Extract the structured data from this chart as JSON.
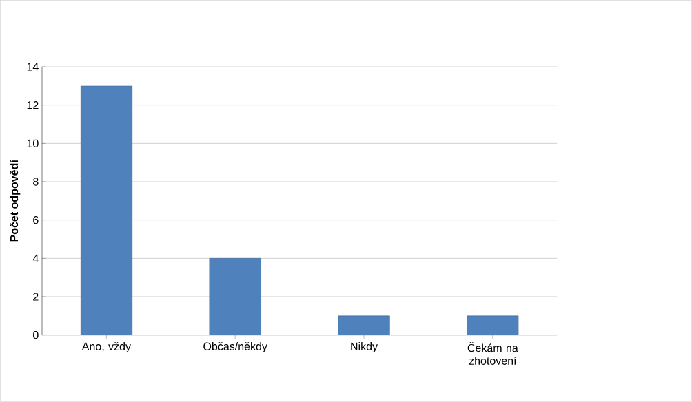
{
  "chart_data": {
    "type": "bar",
    "ylabel": "Počet odpovědí",
    "categories": [
      "Ano, vždy",
      "Občas/někdy",
      "Nikdy",
      "Čekám na zhotovení"
    ],
    "values": [
      13,
      4,
      1,
      1
    ],
    "color": "#4f81bd",
    "ylim": [
      0,
      14
    ],
    "yticks": [
      0,
      2,
      4,
      6,
      8,
      10,
      12,
      14
    ],
    "grid": "y"
  }
}
